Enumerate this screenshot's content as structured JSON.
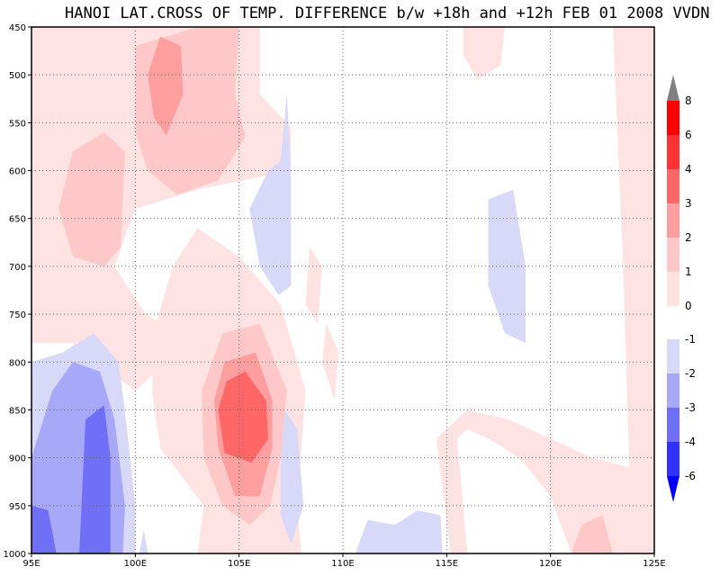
{
  "chart_data": {
    "type": "heatmap",
    "title": "HANOI LAT.CROSS OF TEMP. DIFFERENCE b/w +18h and +12h FEB 01 2008 VVDN",
    "xlabel": "",
    "ylabel": "",
    "xlim": [
      95,
      125
    ],
    "ylim": [
      1000,
      450
    ],
    "x_ticks": [
      {
        "value": 95,
        "label": "95E"
      },
      {
        "value": 100,
        "label": "100E"
      },
      {
        "value": 105,
        "label": "105E"
      },
      {
        "value": 110,
        "label": "110E"
      },
      {
        "value": 115,
        "label": "115E"
      },
      {
        "value": 120,
        "label": "120E"
      },
      {
        "value": 125,
        "label": "125E"
      }
    ],
    "y_ticks": [
      {
        "value": 450,
        "label": "450"
      },
      {
        "value": 500,
        "label": "500"
      },
      {
        "value": 550,
        "label": "550"
      },
      {
        "value": 600,
        "label": "600"
      },
      {
        "value": 650,
        "label": "650"
      },
      {
        "value": 700,
        "label": "700"
      },
      {
        "value": 750,
        "label": "750"
      },
      {
        "value": 800,
        "label": "800"
      },
      {
        "value": 850,
        "label": "850"
      },
      {
        "value": 900,
        "label": "900"
      },
      {
        "value": 950,
        "label": "950"
      },
      {
        "value": 1000,
        "label": "1000"
      }
    ],
    "grid": true,
    "legend": "right colorbar",
    "colorbar": {
      "labels": [
        "8",
        "6",
        "4",
        "3",
        "2",
        "1",
        "0",
        "-1",
        "-2",
        "-3",
        "-4",
        "-6"
      ],
      "bins": [
        {
          "from": 8,
          "to": null,
          "color": "#808080"
        },
        {
          "from": 6,
          "to": 8,
          "color": "#ff0000"
        },
        {
          "from": 4,
          "to": 6,
          "color": "#ff3333"
        },
        {
          "from": 3,
          "to": 4,
          "color": "#ff6666"
        },
        {
          "from": 2,
          "to": 3,
          "color": "#ff9e9e"
        },
        {
          "from": 1,
          "to": 2,
          "color": "#ffc8c8"
        },
        {
          "from": 0,
          "to": 1,
          "color": "#ffe2e2"
        },
        {
          "from": -1,
          "to": 0,
          "color": "#ffffff"
        },
        {
          "from": -2,
          "to": -1,
          "color": "#d8d8f8"
        },
        {
          "from": -3,
          "to": -2,
          "color": "#a8a8f8"
        },
        {
          "from": -4,
          "to": -3,
          "color": "#6f6ff8"
        },
        {
          "from": -6,
          "to": -4,
          "color": "#3030ff"
        },
        {
          "from": null,
          "to": -6,
          "color": "#0000ff"
        }
      ]
    },
    "regions": [
      {
        "name": "west-upper-warm",
        "level": 1,
        "color": "#ffe2e2",
        "outline": [
          [
            95,
            450
          ],
          [
            106,
            450
          ],
          [
            106,
            520
          ],
          [
            107.5,
            555
          ],
          [
            107.5,
            600
          ],
          [
            103,
            620
          ],
          [
            100,
            640
          ],
          [
            99,
            700
          ],
          [
            100.5,
            750
          ],
          [
            102.5,
            775
          ],
          [
            101.5,
            800
          ],
          [
            100,
            830
          ],
          [
            97,
            780
          ],
          [
            95,
            780
          ]
        ]
      },
      {
        "name": "west-upper-mod",
        "level": 2,
        "color": "#ffc8c8",
        "outline": [
          [
            100,
            470
          ],
          [
            103,
            450
          ],
          [
            105,
            450
          ],
          [
            104.8,
            520
          ],
          [
            105.3,
            565
          ],
          [
            104,
            610
          ],
          [
            102,
            625
          ],
          [
            100.6,
            600
          ],
          [
            100,
            560
          ]
        ]
      },
      {
        "name": "west-upper-core",
        "level": 3,
        "color": "#ff9e9e",
        "outline": [
          [
            100.6,
            500
          ],
          [
            101.2,
            460
          ],
          [
            102.2,
            470
          ],
          [
            102.3,
            520
          ],
          [
            101.5,
            563
          ],
          [
            100.9,
            545
          ]
        ]
      },
      {
        "name": "west-upper-secondary",
        "level": 2,
        "color": "#ffc8c8",
        "outline": [
          [
            96.3,
            640
          ],
          [
            97,
            580
          ],
          [
            98.5,
            560
          ],
          [
            99.5,
            580
          ],
          [
            99.3,
            680
          ],
          [
            98.5,
            700
          ],
          [
            97,
            690
          ]
        ]
      },
      {
        "name": "east-upper-warm",
        "level": 1,
        "color": "#ffe2e2",
        "outline": [
          [
            115.8,
            450
          ],
          [
            117.8,
            450
          ],
          [
            117.6,
            490
          ],
          [
            116.5,
            505
          ],
          [
            115.8,
            480
          ]
        ]
      },
      {
        "name": "east-right-warm",
        "level": 1,
        "color": "#ffe2e2",
        "outline": [
          [
            123,
            450
          ],
          [
            125,
            450
          ],
          [
            125,
            1000
          ],
          [
            121,
            1000
          ],
          [
            120,
            940
          ],
          [
            118.5,
            900
          ],
          [
            117,
            880
          ],
          [
            116,
            870
          ],
          [
            115.5,
            880
          ],
          [
            116,
            1000
          ],
          [
            115.2,
            1000
          ],
          [
            114.5,
            880
          ],
          [
            116,
            850
          ],
          [
            118,
            860
          ],
          [
            120,
            880
          ],
          [
            122,
            900
          ],
          [
            123.8,
            910
          ],
          [
            123.5,
            700
          ]
        ]
      },
      {
        "name": "mid-small-warm-a",
        "level": 1,
        "color": "#ffe2e2",
        "outline": [
          [
            108.2,
            740
          ],
          [
            108.4,
            680
          ],
          [
            109,
            700
          ],
          [
            108.8,
            760
          ]
        ]
      },
      {
        "name": "mid-small-warm-b",
        "level": 1,
        "color": "#ffe2e2",
        "outline": [
          [
            109,
            800
          ],
          [
            109.2,
            760
          ],
          [
            109.8,
            790
          ],
          [
            109.6,
            840
          ]
        ]
      },
      {
        "name": "bottom-right-mod",
        "level": 2,
        "color": "#ffc8c8",
        "outline": [
          [
            121,
            1000
          ],
          [
            121.5,
            970
          ],
          [
            122.5,
            960
          ],
          [
            123,
            1000
          ]
        ]
      },
      {
        "name": "center-warm-lobe",
        "level": 1,
        "color": "#ffe2e2",
        "outline": [
          [
            101.8,
            700
          ],
          [
            103,
            660
          ],
          [
            105,
            690
          ],
          [
            107,
            740
          ],
          [
            108.2,
            830
          ],
          [
            107.8,
            950
          ],
          [
            108,
            1000
          ],
          [
            103,
            1000
          ],
          [
            103.3,
            950
          ],
          [
            101.2,
            890
          ],
          [
            100.8,
            830
          ],
          [
            101,
            760
          ]
        ]
      },
      {
        "name": "center-warm-mod",
        "level": 2,
        "color": "#ffc8c8",
        "outline": [
          [
            104.2,
            770
          ],
          [
            106,
            760
          ],
          [
            107.3,
            830
          ],
          [
            107,
            900
          ],
          [
            106.5,
            950
          ],
          [
            105.5,
            970
          ],
          [
            104.2,
            950
          ],
          [
            103.3,
            900
          ],
          [
            103.2,
            830
          ]
        ]
      },
      {
        "name": "center-warm-strong",
        "level": 3,
        "color": "#ff9e9e",
        "outline": [
          [
            104.3,
            800
          ],
          [
            105.8,
            790
          ],
          [
            106.6,
            840
          ],
          [
            106.6,
            890
          ],
          [
            106,
            940
          ],
          [
            104.8,
            940
          ],
          [
            104,
            890
          ],
          [
            103.8,
            840
          ]
        ]
      },
      {
        "name": "center-warm-core",
        "level": 4,
        "color": "#ff6666",
        "outline": [
          [
            104.4,
            820
          ],
          [
            105.3,
            810
          ],
          [
            106.3,
            840
          ],
          [
            106.4,
            880
          ],
          [
            105.6,
            905
          ],
          [
            104.3,
            895
          ],
          [
            104,
            850
          ]
        ]
      },
      {
        "name": "cold-mid-upper",
        "level": -1,
        "color": "#d8d8f8",
        "outline": [
          [
            107.3,
            520
          ],
          [
            107.5,
            600
          ],
          [
            107.5,
            720
          ],
          [
            106.9,
            730
          ],
          [
            106,
            700
          ],
          [
            105.5,
            640
          ],
          [
            106.4,
            600
          ],
          [
            107,
            590
          ]
        ]
      },
      {
        "name": "cold-mid-lower",
        "level": -1,
        "color": "#d8d8f8",
        "outline": [
          [
            107.2,
            850
          ],
          [
            107.8,
            870
          ],
          [
            108.1,
            950
          ],
          [
            107.5,
            990
          ],
          [
            107,
            960
          ],
          [
            107,
            900
          ]
        ]
      },
      {
        "name": "cold-east-oval",
        "level": -1,
        "color": "#d8d8f8",
        "outline": [
          [
            117,
            630
          ],
          [
            118.2,
            620
          ],
          [
            118.8,
            700
          ],
          [
            118.8,
            780
          ],
          [
            117.8,
            770
          ],
          [
            117,
            720
          ]
        ]
      },
      {
        "name": "cold-bottom-mid",
        "level": -1,
        "color": "#d8d8f8",
        "outline": [
          [
            110.6,
            1000
          ],
          [
            111.2,
            965
          ],
          [
            112.5,
            970
          ],
          [
            113.6,
            955
          ],
          [
            114.7,
            960
          ],
          [
            114.8,
            1000
          ]
        ]
      },
      {
        "name": "cold-bottom-small",
        "level": -1,
        "color": "#d8d8f8",
        "outline": [
          [
            100.2,
            1000
          ],
          [
            100.4,
            975
          ],
          [
            100.6,
            1000
          ]
        ]
      },
      {
        "name": "cold-west-outer",
        "level": -1,
        "color": "#d8d8f8",
        "outline": [
          [
            95,
            1000
          ],
          [
            95,
            800
          ],
          [
            96.5,
            790
          ],
          [
            98,
            770
          ],
          [
            99.2,
            800
          ],
          [
            99.6,
            870
          ],
          [
            100,
            950
          ],
          [
            100,
            1000
          ]
        ]
      },
      {
        "name": "cold-west-mod",
        "level": -2,
        "color": "#a8a8f8",
        "outline": [
          [
            95,
            1000
          ],
          [
            95,
            900
          ],
          [
            96,
            830
          ],
          [
            97,
            800
          ],
          [
            98.3,
            810
          ],
          [
            99,
            860
          ],
          [
            99.5,
            950
          ],
          [
            99.4,
            1000
          ]
        ]
      },
      {
        "name": "cold-west-strong",
        "level": -3,
        "color": "#6f6ff8",
        "outline": [
          [
            97.3,
            1000
          ],
          [
            97.6,
            860
          ],
          [
            98.5,
            845
          ],
          [
            98.8,
            900
          ],
          [
            98.8,
            1000
          ]
        ]
      },
      {
        "name": "cold-west-left",
        "level": -3,
        "color": "#6f6ff8",
        "outline": [
          [
            95,
            1000
          ],
          [
            95,
            950
          ],
          [
            95.8,
            955
          ],
          [
            96.2,
            1000
          ]
        ]
      }
    ]
  }
}
